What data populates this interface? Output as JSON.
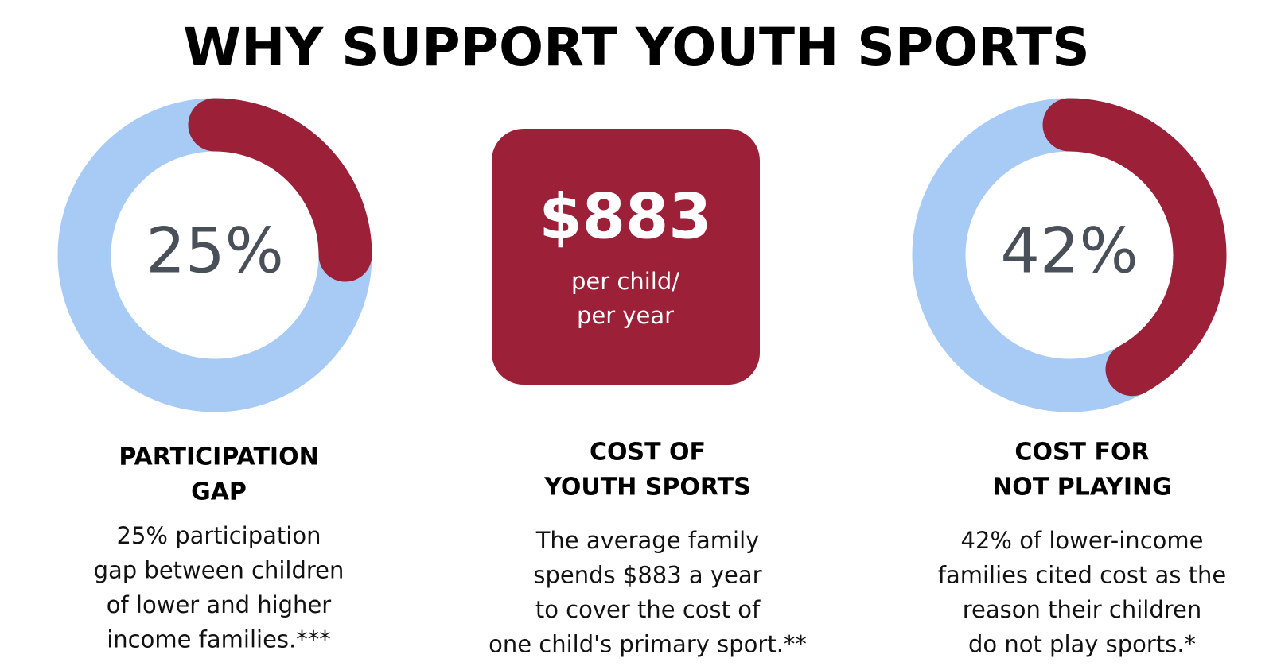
{
  "title": "WHY SUPPORT YOUTH SPORTS",
  "chart_data": [
    {
      "type": "donut",
      "values": [
        25
      ],
      "value_labels": [
        "25%"
      ],
      "color": "#9b2038",
      "track_color": "#a7cbf5"
    },
    {
      "type": "donut",
      "values": [
        42
      ],
      "value_labels": [
        "42%"
      ],
      "color": "#9b2038",
      "track_color": "#a7cbf5"
    }
  ],
  "highlight": {
    "amount": "$883",
    "lines": [
      "per child/",
      "per year"
    ],
    "color": "#9b2038"
  },
  "columns": [
    {
      "heading": [
        "PARTICIPATION",
        "GAP"
      ],
      "body": [
        "25% participation",
        "gap between children",
        "of lower and higher",
        "income families.***"
      ]
    },
    {
      "heading": [
        "COST OF",
        "YOUTH SPORTS"
      ],
      "body": [
        "The average family",
        "spends $883 a year",
        "to cover the cost of",
        "one child's primary sport.**"
      ]
    },
    {
      "heading": [
        "COST FOR",
        "NOT PLAYING"
      ],
      "body": [
        "42% of lower-income",
        "families cited cost as the",
        "reason their children",
        "do not play sports.*"
      ]
    }
  ]
}
